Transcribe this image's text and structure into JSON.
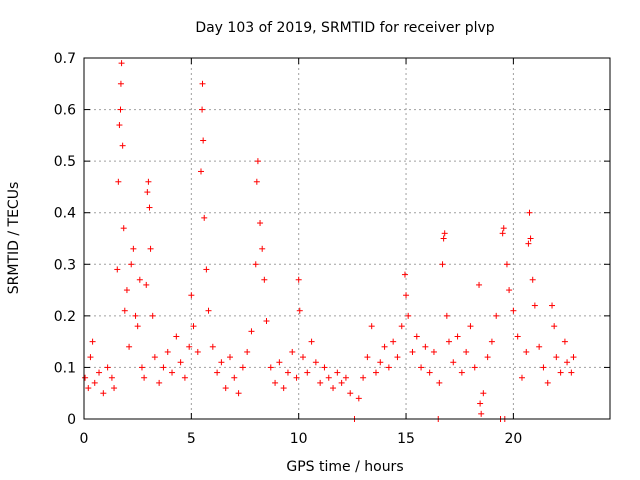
{
  "chart_data": {
    "type": "scatter",
    "title": "Day 103 of 2019, SRMTID for receiver plvp",
    "xlabel": "GPS time / hours",
    "ylabel": "SRMTID / TECUs",
    "xlim": [
      0,
      24.5
    ],
    "ylim": [
      0,
      0.7
    ],
    "xticks": [
      0,
      5,
      10,
      15,
      20
    ],
    "yticks": [
      0,
      0.1,
      0.2,
      0.3,
      0.4,
      0.5,
      0.6,
      0.7
    ],
    "xtick_labels": [
      "0",
      "5",
      "10",
      "15",
      "20"
    ],
    "ytick_labels": [
      "0",
      "0.1",
      "0.2",
      "0.3",
      "0.4",
      "0.5",
      "0.6",
      "0.7"
    ],
    "grid": true,
    "marker": "+",
    "color": "#ff0000",
    "series": [
      {
        "name": "SRMTID",
        "points": [
          [
            0.05,
            0.08
          ],
          [
            0.2,
            0.06
          ],
          [
            0.3,
            0.12
          ],
          [
            0.4,
            0.15
          ],
          [
            0.5,
            0.07
          ],
          [
            0.7,
            0.09
          ],
          [
            0.9,
            0.05
          ],
          [
            1.1,
            0.1
          ],
          [
            1.3,
            0.08
          ],
          [
            1.4,
            0.06
          ],
          [
            1.55,
            0.29
          ],
          [
            1.6,
            0.46
          ],
          [
            1.65,
            0.57
          ],
          [
            1.7,
            0.6
          ],
          [
            1.72,
            0.65
          ],
          [
            1.75,
            0.69
          ],
          [
            1.8,
            0.53
          ],
          [
            1.85,
            0.37
          ],
          [
            1.9,
            0.21
          ],
          [
            2.0,
            0.25
          ],
          [
            2.1,
            0.14
          ],
          [
            2.2,
            0.3
          ],
          [
            2.3,
            0.33
          ],
          [
            2.4,
            0.2
          ],
          [
            2.5,
            0.18
          ],
          [
            2.6,
            0.27
          ],
          [
            2.7,
            0.1
          ],
          [
            2.8,
            0.08
          ],
          [
            2.9,
            0.26
          ],
          [
            2.95,
            0.44
          ],
          [
            3.0,
            0.46
          ],
          [
            3.05,
            0.41
          ],
          [
            3.1,
            0.33
          ],
          [
            3.2,
            0.2
          ],
          [
            3.3,
            0.12
          ],
          [
            3.5,
            0.07
          ],
          [
            3.7,
            0.1
          ],
          [
            3.9,
            0.13
          ],
          [
            4.1,
            0.09
          ],
          [
            4.3,
            0.16
          ],
          [
            4.5,
            0.11
          ],
          [
            4.7,
            0.08
          ],
          [
            4.9,
            0.14
          ],
          [
            5.0,
            0.24
          ],
          [
            5.1,
            0.18
          ],
          [
            5.3,
            0.13
          ],
          [
            5.45,
            0.48
          ],
          [
            5.5,
            0.6
          ],
          [
            5.52,
            0.65
          ],
          [
            5.55,
            0.54
          ],
          [
            5.6,
            0.39
          ],
          [
            5.7,
            0.29
          ],
          [
            5.8,
            0.21
          ],
          [
            6.0,
            0.14
          ],
          [
            6.2,
            0.09
          ],
          [
            6.4,
            0.11
          ],
          [
            6.6,
            0.06
          ],
          [
            6.8,
            0.12
          ],
          [
            7.0,
            0.08
          ],
          [
            7.2,
            0.05
          ],
          [
            7.4,
            0.1
          ],
          [
            7.6,
            0.13
          ],
          [
            7.8,
            0.17
          ],
          [
            8.0,
            0.3
          ],
          [
            8.05,
            0.46
          ],
          [
            8.1,
            0.5
          ],
          [
            8.2,
            0.38
          ],
          [
            8.3,
            0.33
          ],
          [
            8.4,
            0.27
          ],
          [
            8.5,
            0.19
          ],
          [
            8.7,
            0.1
          ],
          [
            8.9,
            0.07
          ],
          [
            9.1,
            0.11
          ],
          [
            9.3,
            0.06
          ],
          [
            9.5,
            0.09
          ],
          [
            9.7,
            0.13
          ],
          [
            9.9,
            0.08
          ],
          [
            10.0,
            0.27
          ],
          [
            10.05,
            0.21
          ],
          [
            10.2,
            0.12
          ],
          [
            10.4,
            0.09
          ],
          [
            10.6,
            0.15
          ],
          [
            10.8,
            0.11
          ],
          [
            11.0,
            0.07
          ],
          [
            11.2,
            0.1
          ],
          [
            11.4,
            0.08
          ],
          [
            11.6,
            0.06
          ],
          [
            11.8,
            0.09
          ],
          [
            12.0,
            0.07
          ],
          [
            12.2,
            0.08
          ],
          [
            12.4,
            0.05
          ],
          [
            12.6,
            0.0
          ],
          [
            12.8,
            0.04
          ],
          [
            13.0,
            0.08
          ],
          [
            13.2,
            0.12
          ],
          [
            13.4,
            0.18
          ],
          [
            13.6,
            0.09
          ],
          [
            13.8,
            0.11
          ],
          [
            14.0,
            0.14
          ],
          [
            14.2,
            0.1
          ],
          [
            14.4,
            0.15
          ],
          [
            14.6,
            0.12
          ],
          [
            14.8,
            0.18
          ],
          [
            14.95,
            0.28
          ],
          [
            15.0,
            0.24
          ],
          [
            15.1,
            0.2
          ],
          [
            15.3,
            0.13
          ],
          [
            15.5,
            0.16
          ],
          [
            15.7,
            0.1
          ],
          [
            15.9,
            0.14
          ],
          [
            16.1,
            0.09
          ],
          [
            16.3,
            0.13
          ],
          [
            16.5,
            0.0
          ],
          [
            16.55,
            0.07
          ],
          [
            16.7,
            0.3
          ],
          [
            16.75,
            0.35
          ],
          [
            16.8,
            0.36
          ],
          [
            16.9,
            0.2
          ],
          [
            17.0,
            0.15
          ],
          [
            17.2,
            0.11
          ],
          [
            17.4,
            0.16
          ],
          [
            17.6,
            0.09
          ],
          [
            17.8,
            0.13
          ],
          [
            18.0,
            0.18
          ],
          [
            18.2,
            0.1
          ],
          [
            18.4,
            0.26
          ],
          [
            18.45,
            0.03
          ],
          [
            18.5,
            0.01
          ],
          [
            18.6,
            0.05
          ],
          [
            18.8,
            0.12
          ],
          [
            19.0,
            0.15
          ],
          [
            19.2,
            0.2
          ],
          [
            19.4,
            0.0
          ],
          [
            19.5,
            0.36
          ],
          [
            19.55,
            0.37
          ],
          [
            19.6,
            0.0
          ],
          [
            19.7,
            0.3
          ],
          [
            19.8,
            0.25
          ],
          [
            20.0,
            0.21
          ],
          [
            20.2,
            0.16
          ],
          [
            20.4,
            0.08
          ],
          [
            20.6,
            0.13
          ],
          [
            20.7,
            0.34
          ],
          [
            20.75,
            0.4
          ],
          [
            20.8,
            0.35
          ],
          [
            20.9,
            0.27
          ],
          [
            21.0,
            0.22
          ],
          [
            21.2,
            0.14
          ],
          [
            21.4,
            0.1
          ],
          [
            21.6,
            0.07
          ],
          [
            21.8,
            0.22
          ],
          [
            21.9,
            0.18
          ],
          [
            22.0,
            0.12
          ],
          [
            22.2,
            0.09
          ],
          [
            22.4,
            0.15
          ],
          [
            22.5,
            0.11
          ],
          [
            22.7,
            0.09
          ],
          [
            22.8,
            0.12
          ]
        ]
      }
    ]
  }
}
